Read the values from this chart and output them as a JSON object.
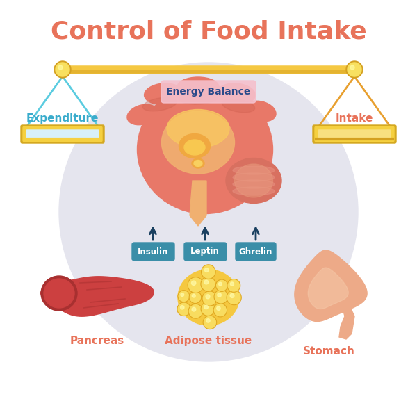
{
  "title": "Control of Food Intake",
  "title_color": "#E8735A",
  "title_fontsize": 26,
  "bg_circle_color": "#E5E5EE",
  "bg_color": "#FFFFFF",
  "scale_bar_color": "#F5C842",
  "scale_rope_left": "#5BCCE0",
  "scale_rope_right": "#E8A030",
  "scale_left_label": "Expenditure",
  "scale_right_label": "Intake",
  "scale_label_color_left": "#3AACCC",
  "scale_label_color_right": "#E8735A",
  "energy_balance_label": "Energy Balance",
  "energy_balance_color": "#2A4A8A",
  "energy_balance_bg": "#F5C0CC",
  "hormone_labels": [
    "Insulin",
    "Leptin",
    "Ghrelin"
  ],
  "hormone_box_color": "#3A8EA8",
  "hormone_text_color": "#FFFFFF",
  "organ_labels": [
    "Pancreas",
    "Adipose tissue",
    "Stomach"
  ],
  "organ_label_color": "#E8735A",
  "brain_outer_color": "#E87868",
  "brain_inner_color": "#F0B070",
  "pancreas_color": "#CC4040",
  "pancreas_dark": "#A83030",
  "adipose_color": "#F5C840",
  "adipose_dark": "#E0A820",
  "stomach_color": "#EDAA88",
  "stomach_inner": "#F5C8A8",
  "arrow_color": "#1A4060"
}
